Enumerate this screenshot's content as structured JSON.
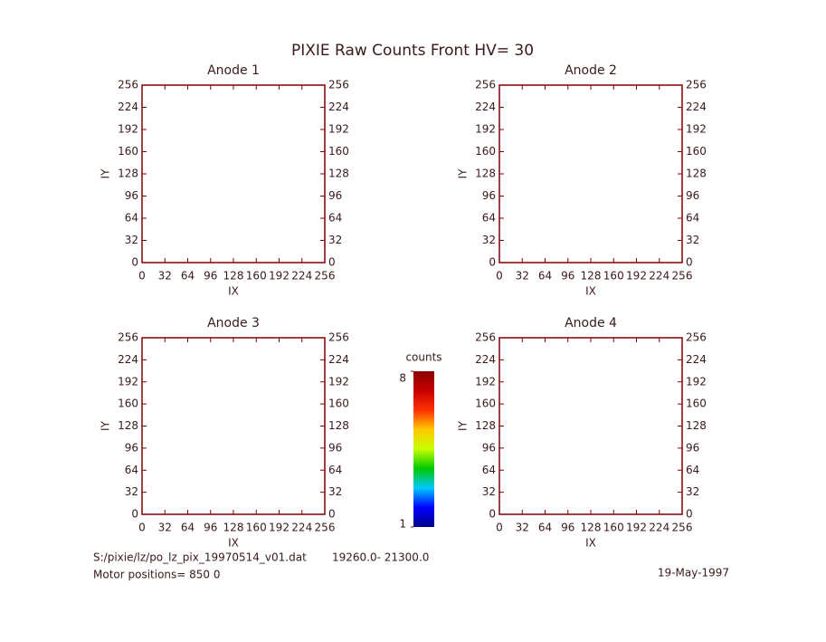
{
  "title": "PIXIE Raw Counts Front HV= 30",
  "chart_data": [
    {
      "type": "heatmap",
      "title": "Anode 1",
      "xlabel": "IX",
      "ylabel": "IY",
      "xlim": [
        0,
        256
      ],
      "ylim": [
        0,
        256
      ],
      "xticks": [
        0,
        32,
        64,
        96,
        128,
        160,
        192,
        224,
        256
      ],
      "yticks": [
        0,
        32,
        64,
        96,
        128,
        160,
        192,
        224,
        256
      ]
    },
    {
      "type": "heatmap",
      "title": "Anode 2",
      "xlabel": "IX",
      "ylabel": "IY",
      "xlim": [
        0,
        256
      ],
      "ylim": [
        0,
        256
      ],
      "xticks": [
        0,
        32,
        64,
        96,
        128,
        160,
        192,
        224,
        256
      ],
      "yticks": [
        0,
        32,
        64,
        96,
        128,
        160,
        192,
        224,
        256
      ]
    },
    {
      "type": "heatmap",
      "title": "Anode 3",
      "xlabel": "IX",
      "ylabel": "IY",
      "xlim": [
        0,
        256
      ],
      "ylim": [
        0,
        256
      ],
      "xticks": [
        0,
        32,
        64,
        96,
        128,
        160,
        192,
        224,
        256
      ],
      "yticks": [
        0,
        32,
        64,
        96,
        128,
        160,
        192,
        224,
        256
      ]
    },
    {
      "type": "heatmap",
      "title": "Anode 4",
      "xlabel": "IX",
      "ylabel": "IY",
      "xlim": [
        0,
        256
      ],
      "ylim": [
        0,
        256
      ],
      "xticks": [
        0,
        32,
        64,
        96,
        128,
        160,
        192,
        224,
        256
      ],
      "yticks": [
        0,
        32,
        64,
        96,
        128,
        160,
        192,
        224,
        256
      ]
    }
  ],
  "colorbar": {
    "label": "counts",
    "clim": [
      1,
      8
    ],
    "ticks": [
      1,
      8
    ],
    "colors": [
      "#00008b",
      "#0000ff",
      "#00c8ff",
      "#00c800",
      "#c8ff00",
      "#ffc800",
      "#ff3200",
      "#c80000",
      "#8b0000"
    ]
  },
  "footer": {
    "file": "S:/pixie/lz/po_lz_pix_19970514_v01.dat",
    "range": "19260.0- 21300.0",
    "motor": "Motor positions= 850 0",
    "date": "19-May-1997"
  }
}
